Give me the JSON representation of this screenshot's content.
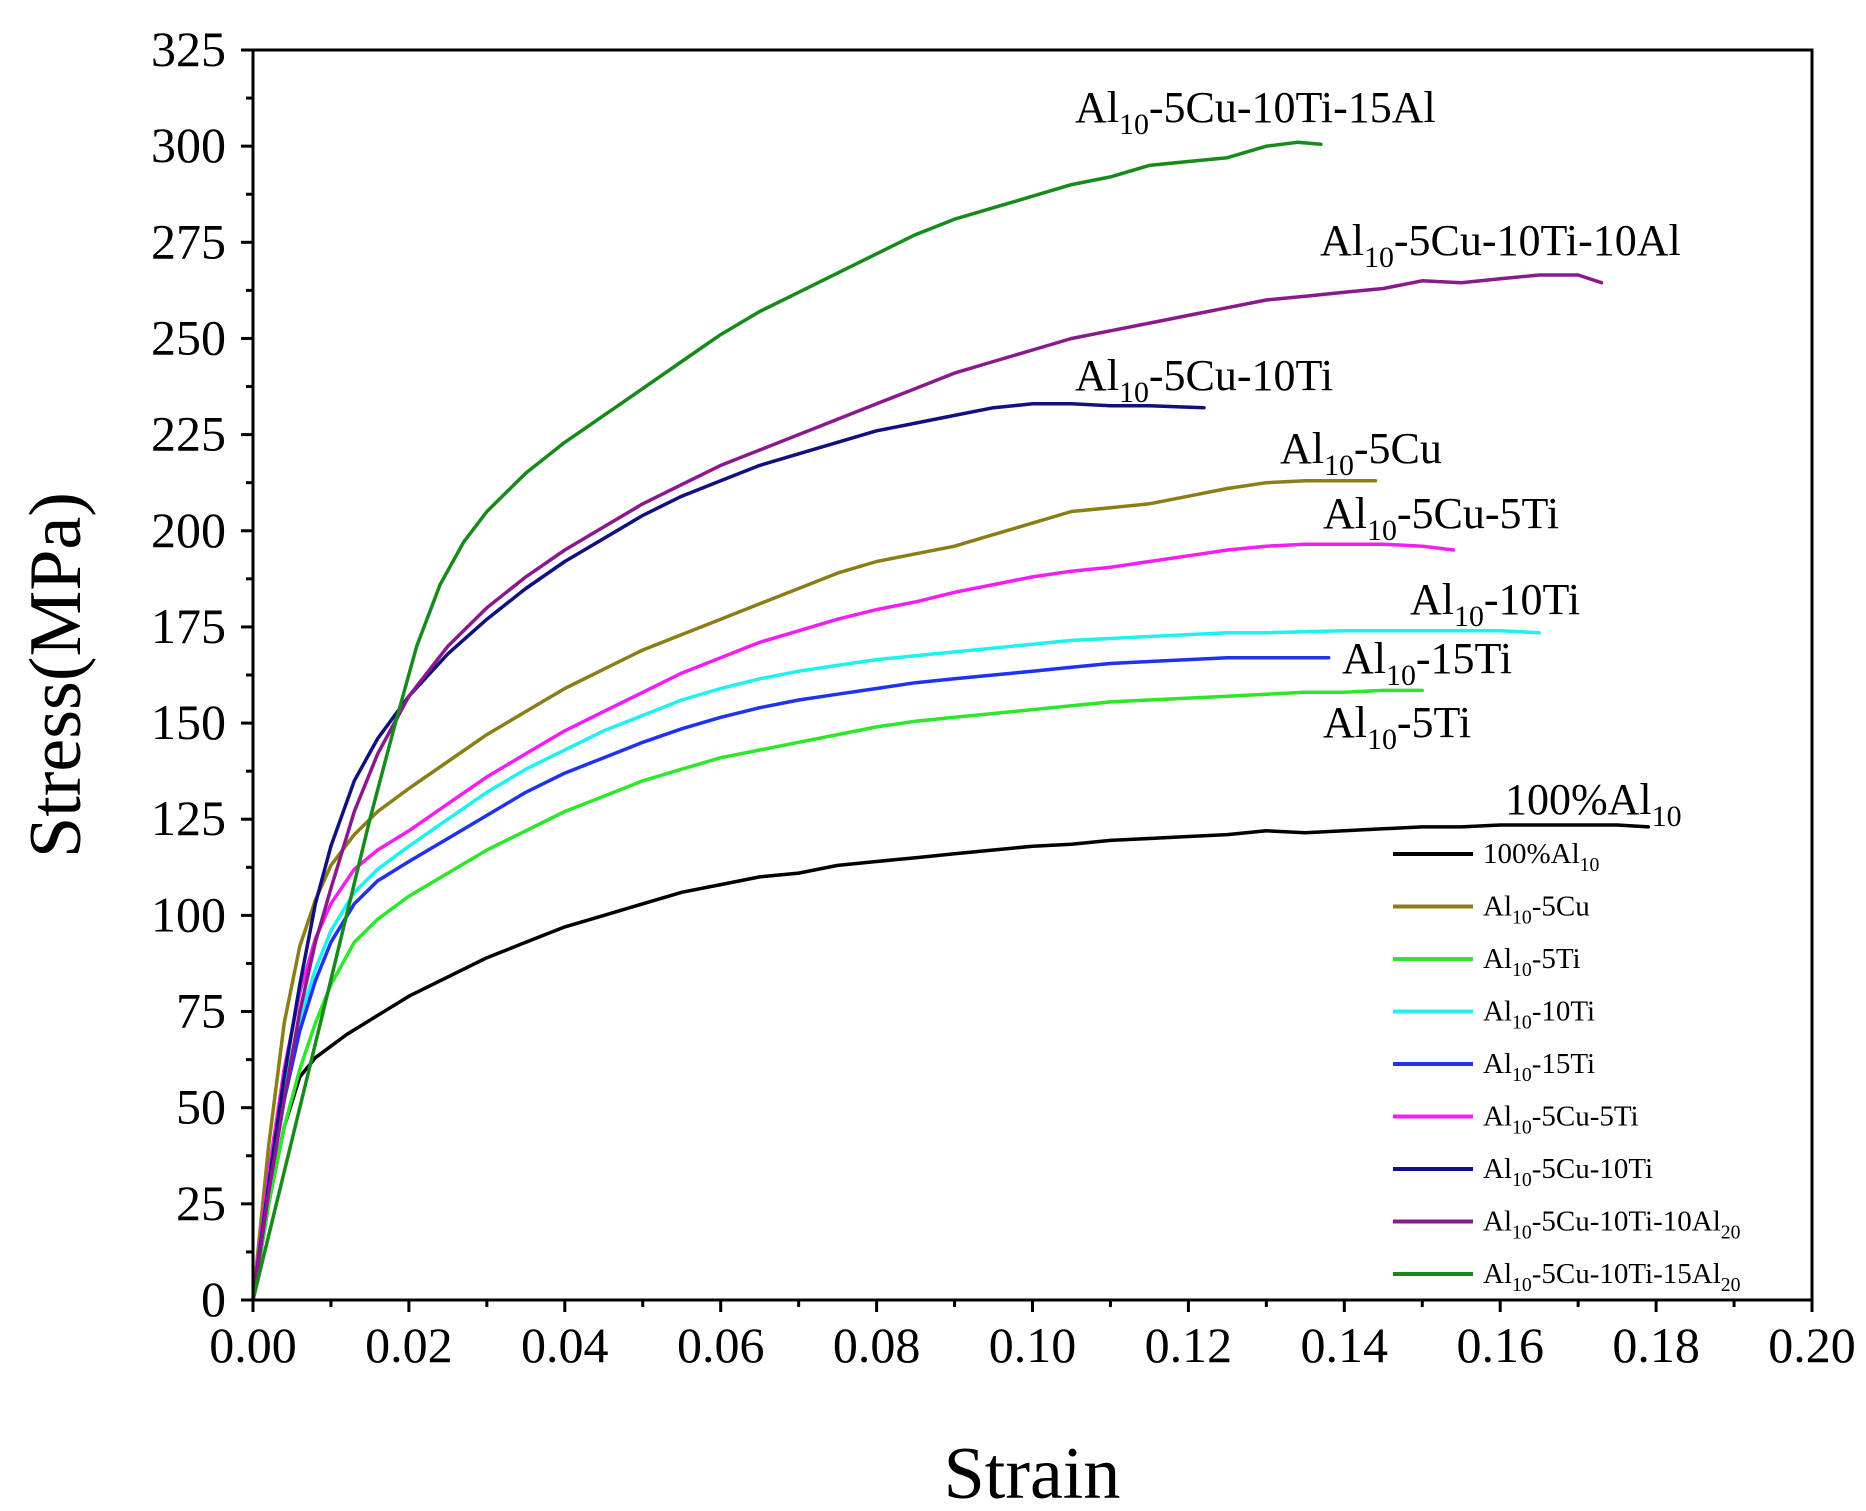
{
  "chart_data": {
    "type": "line",
    "title": "",
    "xlabel": "Strain",
    "ylabel": "Stress(MPa)",
    "xlim": [
      0,
      0.2
    ],
    "ylim": [
      0,
      325
    ],
    "x_ticks": [
      "0.00",
      "0.02",
      "0.04",
      "0.06",
      "0.08",
      "0.10",
      "0.12",
      "0.14",
      "0.16",
      "0.18",
      "0.20"
    ],
    "y_ticks": [
      "0",
      "25",
      "50",
      "75",
      "100",
      "125",
      "150",
      "175",
      "200",
      "225",
      "250",
      "275",
      "300",
      "325"
    ],
    "legend_position": "bottom-right",
    "series": [
      {
        "name": "100%Al10",
        "base": "100%Al",
        "sub": "10",
        "color": "#000000",
        "x": [
          0,
          0.002,
          0.004,
          0.006,
          0.008,
          0.012,
          0.016,
          0.02,
          0.025,
          0.03,
          0.035,
          0.04,
          0.045,
          0.05,
          0.055,
          0.06,
          0.065,
          0.07,
          0.075,
          0.08,
          0.085,
          0.09,
          0.095,
          0.1,
          0.105,
          0.11,
          0.115,
          0.12,
          0.125,
          0.13,
          0.135,
          0.14,
          0.145,
          0.15,
          0.155,
          0.16,
          0.165,
          0.17,
          0.175,
          0.179
        ],
        "y": [
          0,
          25,
          45,
          58,
          63,
          69,
          74,
          79,
          84,
          89,
          93,
          97,
          100,
          103,
          106,
          108,
          110,
          111,
          113,
          114,
          115,
          116,
          117,
          118,
          118.5,
          119.5,
          120,
          120.5,
          121,
          122,
          121.5,
          122,
          122.5,
          123,
          123,
          123.5,
          123.5,
          123.5,
          123.5,
          123
        ]
      },
      {
        "name": "Al10-5Cu",
        "base": "Al",
        "sub": "10",
        "suffix": "-5Cu",
        "color": "#8b7e17",
        "x": [
          0,
          0.002,
          0.004,
          0.006,
          0.008,
          0.01,
          0.013,
          0.016,
          0.02,
          0.025,
          0.03,
          0.035,
          0.04,
          0.045,
          0.05,
          0.055,
          0.06,
          0.065,
          0.07,
          0.075,
          0.08,
          0.085,
          0.09,
          0.095,
          0.1,
          0.105,
          0.11,
          0.115,
          0.12,
          0.125,
          0.13,
          0.135,
          0.14,
          0.144
        ],
        "y": [
          0,
          40,
          72,
          92,
          104,
          113,
          121,
          127,
          133,
          140,
          147,
          153,
          159,
          164,
          169,
          173,
          177,
          181,
          185,
          189,
          192,
          194,
          196,
          199,
          202,
          205,
          206,
          207,
          209,
          211,
          212.5,
          213,
          213,
          213
        ]
      },
      {
        "name": "Al10-5Ti",
        "base": "Al",
        "sub": "10",
        "suffix": "-5Ti",
        "color": "#2ee62b",
        "x": [
          0,
          0.002,
          0.004,
          0.006,
          0.008,
          0.01,
          0.013,
          0.016,
          0.02,
          0.025,
          0.03,
          0.035,
          0.04,
          0.045,
          0.05,
          0.055,
          0.06,
          0.065,
          0.07,
          0.075,
          0.08,
          0.085,
          0.09,
          0.095,
          0.1,
          0.105,
          0.11,
          0.115,
          0.12,
          0.125,
          0.13,
          0.135,
          0.14,
          0.145,
          0.15
        ],
        "y": [
          0,
          25,
          45,
          60,
          72,
          82,
          93,
          99,
          105,
          111,
          117,
          122,
          127,
          131,
          135,
          138,
          141,
          143,
          145,
          147,
          149,
          150.5,
          151.5,
          152.5,
          153.5,
          154.5,
          155.5,
          156,
          156.5,
          157,
          157.5,
          158,
          158,
          158.5,
          158.5
        ]
      },
      {
        "name": "Al10-10Ti",
        "base": "Al",
        "sub": "10",
        "suffix": "-10Ti",
        "color": "#1ff0f0",
        "x": [
          0,
          0.002,
          0.004,
          0.006,
          0.008,
          0.01,
          0.013,
          0.016,
          0.02,
          0.025,
          0.03,
          0.035,
          0.04,
          0.045,
          0.05,
          0.055,
          0.06,
          0.065,
          0.07,
          0.075,
          0.08,
          0.085,
          0.09,
          0.095,
          0.1,
          0.105,
          0.11,
          0.115,
          0.12,
          0.125,
          0.13,
          0.14,
          0.15,
          0.16,
          0.165
        ],
        "y": [
          0,
          30,
          55,
          73,
          86,
          96,
          106,
          112,
          118,
          125,
          132,
          138,
          143,
          148,
          152,
          156,
          159,
          161.5,
          163.5,
          165,
          166.5,
          167.5,
          168.5,
          169.5,
          170.5,
          171.5,
          172,
          172.5,
          173,
          173.5,
          173.5,
          174,
          174,
          174,
          173.5
        ]
      },
      {
        "name": "Al10-15Ti",
        "base": "Al",
        "sub": "10",
        "suffix": "-15Ti",
        "color": "#1e32f0",
        "x": [
          0,
          0.002,
          0.004,
          0.006,
          0.008,
          0.01,
          0.013,
          0.016,
          0.02,
          0.025,
          0.03,
          0.035,
          0.04,
          0.045,
          0.05,
          0.055,
          0.06,
          0.065,
          0.07,
          0.075,
          0.08,
          0.085,
          0.09,
          0.095,
          0.1,
          0.105,
          0.11,
          0.115,
          0.12,
          0.125,
          0.13,
          0.138
        ],
        "y": [
          0,
          28,
          52,
          70,
          83,
          93,
          103,
          109,
          114,
          120,
          126,
          132,
          137,
          141,
          145,
          148.5,
          151.5,
          154,
          156,
          157.5,
          159,
          160.5,
          161.5,
          162.5,
          163.5,
          164.5,
          165.5,
          166,
          166.5,
          167,
          167,
          167
        ]
      },
      {
        "name": "Al10-5Cu-5Ti",
        "base": "Al",
        "sub": "10",
        "suffix": "-5Cu-5Ti",
        "color": "#f21ef2",
        "x": [
          0,
          0.002,
          0.004,
          0.006,
          0.008,
          0.01,
          0.013,
          0.016,
          0.02,
          0.025,
          0.03,
          0.035,
          0.04,
          0.045,
          0.05,
          0.055,
          0.06,
          0.065,
          0.07,
          0.075,
          0.08,
          0.085,
          0.09,
          0.095,
          0.1,
          0.105,
          0.11,
          0.115,
          0.12,
          0.125,
          0.13,
          0.135,
          0.14,
          0.145,
          0.15,
          0.154
        ],
        "y": [
          0,
          33,
          60,
          80,
          94,
          103,
          112,
          117,
          122,
          129,
          136,
          142,
          148,
          153,
          158,
          163,
          167,
          171,
          174,
          177,
          179.5,
          181.5,
          184,
          186,
          188,
          189.5,
          190.5,
          192,
          193.5,
          195,
          196,
          196.5,
          196.5,
          196.5,
          196,
          195
        ]
      },
      {
        "name": "Al10-5Cu-10Ti",
        "base": "Al",
        "sub": "10",
        "suffix": "-5Cu-10Ti",
        "color": "#10107f",
        "x": [
          0,
          0.002,
          0.004,
          0.006,
          0.008,
          0.01,
          0.013,
          0.016,
          0.02,
          0.025,
          0.03,
          0.035,
          0.04,
          0.045,
          0.05,
          0.055,
          0.06,
          0.065,
          0.07,
          0.075,
          0.08,
          0.085,
          0.09,
          0.095,
          0.1,
          0.105,
          0.11,
          0.115,
          0.122
        ],
        "y": [
          0,
          30,
          58,
          82,
          103,
          118,
          135,
          146,
          157,
          168,
          177,
          185,
          192,
          198,
          204,
          209,
          213,
          217,
          220,
          223,
          226,
          228,
          230,
          232,
          233,
          233,
          232.5,
          232.5,
          232
        ]
      },
      {
        "name": "Al10-5Cu-10Ti-10Al20",
        "base": "Al",
        "sub": "10",
        "suffix": "-5Cu-10Ti-10Al",
        "sub2": "20",
        "color": "#8a1a8c",
        "x": [
          0,
          0.002,
          0.004,
          0.006,
          0.008,
          0.01,
          0.013,
          0.016,
          0.02,
          0.025,
          0.03,
          0.035,
          0.04,
          0.045,
          0.05,
          0.055,
          0.06,
          0.065,
          0.07,
          0.075,
          0.08,
          0.085,
          0.09,
          0.095,
          0.1,
          0.105,
          0.11,
          0.115,
          0.12,
          0.125,
          0.13,
          0.135,
          0.14,
          0.145,
          0.15,
          0.155,
          0.16,
          0.165,
          0.17,
          0.173
        ],
        "y": [
          0,
          28,
          52,
          75,
          93,
          107,
          127,
          142,
          157,
          170,
          180,
          188,
          195,
          201,
          207,
          212,
          217,
          221,
          225,
          229,
          233,
          237,
          241,
          244,
          247,
          250,
          252,
          254,
          256,
          258,
          260,
          261,
          262,
          263,
          265,
          264.5,
          265.5,
          266.5,
          266.5,
          264.5
        ]
      },
      {
        "name": "Al10-5Cu-10Ti-15Al20",
        "base": "Al",
        "sub": "10",
        "suffix": "-5Cu-10Ti-15Al",
        "sub2": "20",
        "color": "#178a1c",
        "x": [
          0,
          0.003,
          0.006,
          0.009,
          0.012,
          0.015,
          0.018,
          0.021,
          0.024,
          0.027,
          0.03,
          0.035,
          0.04,
          0.045,
          0.05,
          0.055,
          0.06,
          0.065,
          0.07,
          0.075,
          0.08,
          0.085,
          0.09,
          0.095,
          0.1,
          0.105,
          0.11,
          0.115,
          0.12,
          0.125,
          0.13,
          0.134,
          0.137
        ],
        "y": [
          0,
          25,
          50,
          75,
          100,
          125,
          148,
          170,
          186,
          197,
          205,
          215,
          223,
          230,
          237,
          244,
          251,
          257,
          262,
          267,
          272,
          277,
          281,
          284,
          287,
          290,
          292,
          295,
          296,
          297,
          300,
          301,
          300.5
        ]
      }
    ],
    "annotations": [
      {
        "base": "Al",
        "sub": "10",
        "suffix": "-5Cu-10Ti-15Al"
      },
      {
        "base": "Al",
        "sub": "10",
        "suffix": "-5Cu-10Ti-10Al"
      },
      {
        "base": "Al",
        "sub": "10",
        "suffix": "-5Cu-10Ti"
      },
      {
        "base": "Al",
        "sub": "10",
        "suffix": "-5Cu"
      },
      {
        "base": "Al",
        "sub": "10",
        "suffix": "-5Cu-5Ti"
      },
      {
        "base": "Al",
        "sub": "10",
        "suffix": "-10Ti"
      },
      {
        "base": "Al",
        "sub": "10",
        "suffix": "-15Ti"
      },
      {
        "base": "Al",
        "sub": "10",
        "suffix": "-5Ti"
      },
      {
        "base": "100%Al",
        "sub": "10",
        "suffix": ""
      }
    ]
  }
}
